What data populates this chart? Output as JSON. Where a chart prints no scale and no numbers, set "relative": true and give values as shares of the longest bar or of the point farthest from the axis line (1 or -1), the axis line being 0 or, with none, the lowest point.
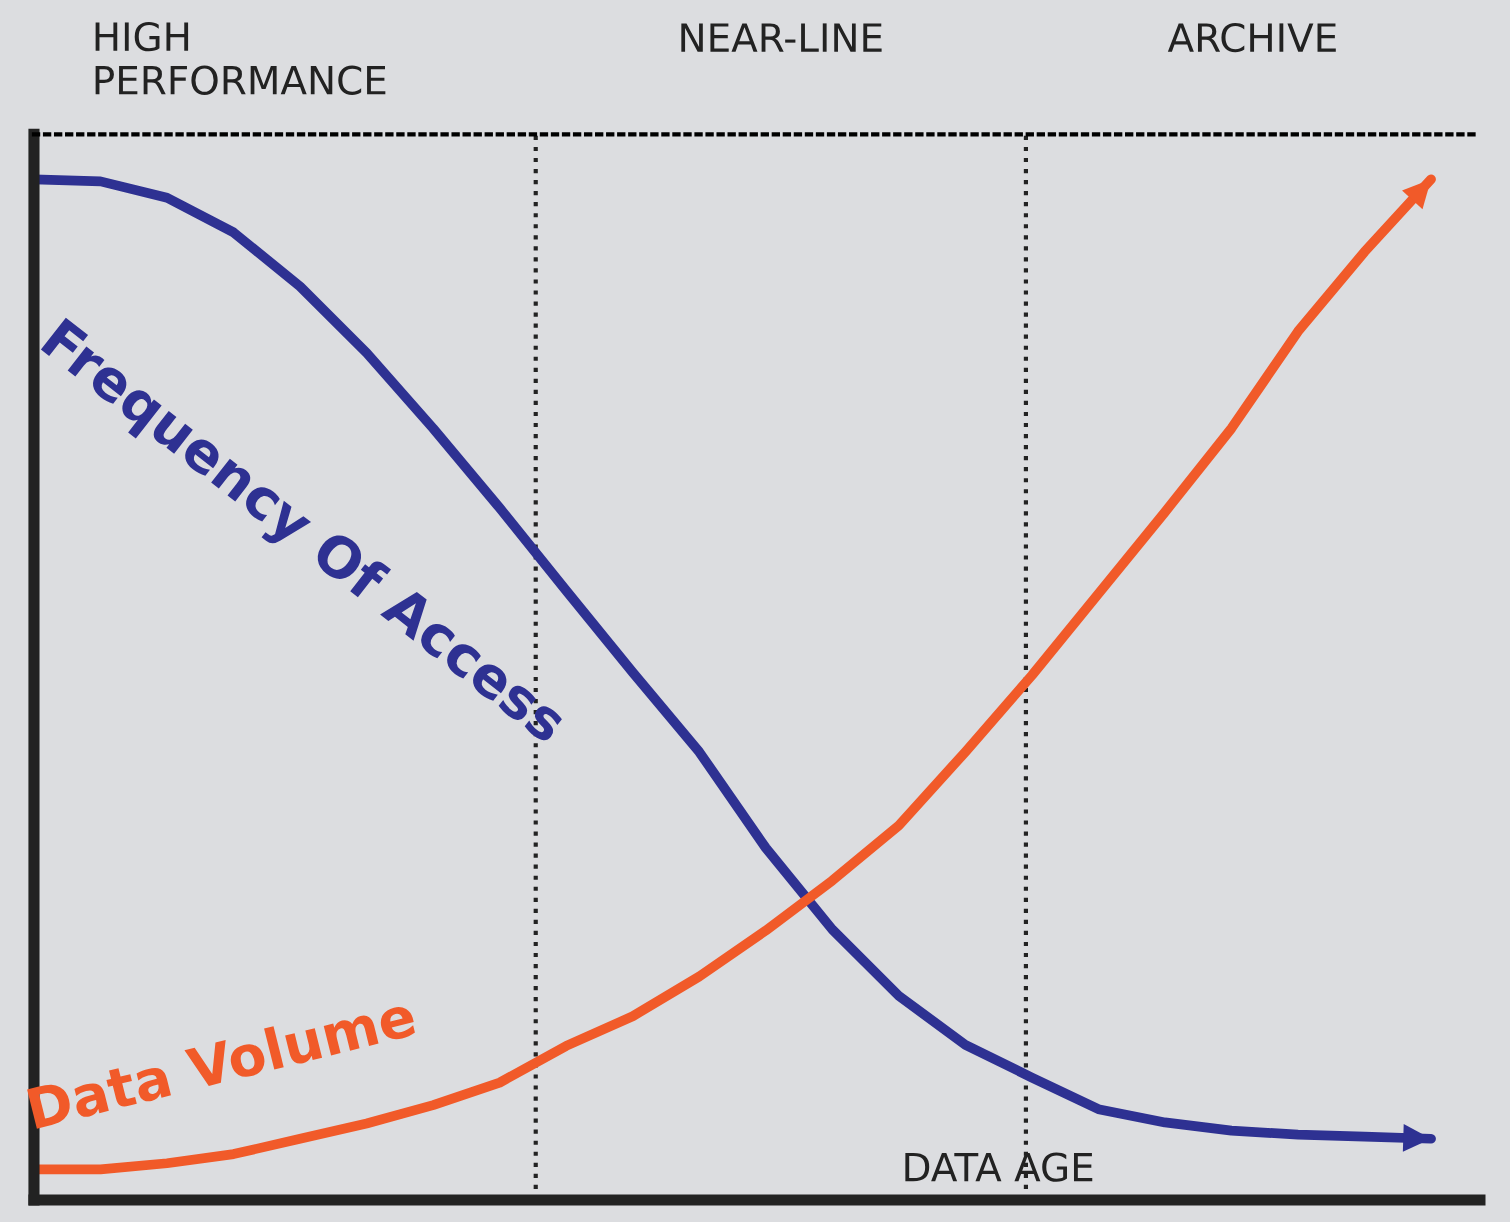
{
  "chart_data": {
    "type": "line",
    "relative": true,
    "marker": "none",
    "line_style": "solid",
    "xlabel": "DATA AGE",
    "annotations": [
      "HIGH\nPERFORMANCE",
      "NEAR-LINE",
      "ARCHIVE"
    ],
    "categories": [
      null,
      null,
      null,
      null,
      null,
      null,
      null,
      null,
      null,
      null,
      null,
      null,
      null,
      null,
      null,
      null,
      null,
      null,
      null,
      null,
      null,
      null
    ],
    "series": [
      {
        "name": "Frequency Of Access",
        "color": "#2e3192",
        "values": [
          1.0,
          0.998,
          0.982,
          0.948,
          0.895,
          0.83,
          0.756,
          0.678,
          0.597,
          0.517,
          0.439,
          0.345,
          0.265,
          0.2,
          0.152,
          0.12,
          0.089,
          0.076,
          0.068,
          0.064,
          0.062,
          0.06
        ]
      },
      {
        "name": "Data Volume",
        "color": "#f15a29",
        "values": [
          0.03,
          0.03,
          0.036,
          0.045,
          0.06,
          0.075,
          0.093,
          0.115,
          0.151,
          0.18,
          0.219,
          0.264,
          0.313,
          0.367,
          0.439,
          0.514,
          0.594,
          0.674,
          0.756,
          0.851,
          0.929,
          1.0
        ]
      }
    ]
  }
}
